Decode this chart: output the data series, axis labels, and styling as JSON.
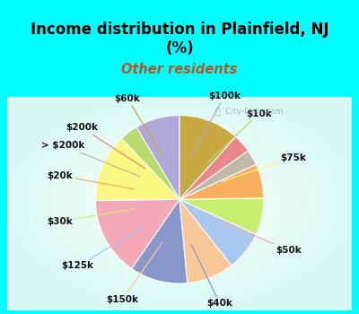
{
  "title": "Income distribution in Plainfield, NJ\n(%)",
  "subtitle": "Other residents",
  "title_color": "#000000",
  "subtitle_color": "#b05a28",
  "background_cyan": "#00ffff",
  "watermark": "City-Data.com",
  "labels": [
    "$100k",
    "$10k",
    "$75k",
    "$50k",
    "$40k",
    "$150k",
    "$125k",
    "$30k",
    "$20k",
    "> $200k",
    "$200k",
    "$60k"
  ],
  "values": [
    8.5,
    3.5,
    13.0,
    15.0,
    11.0,
    9.0,
    7.5,
    7.0,
    6.5,
    3.0,
    3.5,
    11.5
  ],
  "colors": [
    "#b0a8d8",
    "#b8d870",
    "#f8f880",
    "#f4a8b8",
    "#8898cc",
    "#f8c898",
    "#a8c8f0",
    "#c8f070",
    "#f8b060",
    "#c0b8a8",
    "#e88888",
    "#c8a840"
  ],
  "label_fontsize": 7.5,
  "title_fontsize": 12,
  "subtitle_fontsize": 10.5
}
